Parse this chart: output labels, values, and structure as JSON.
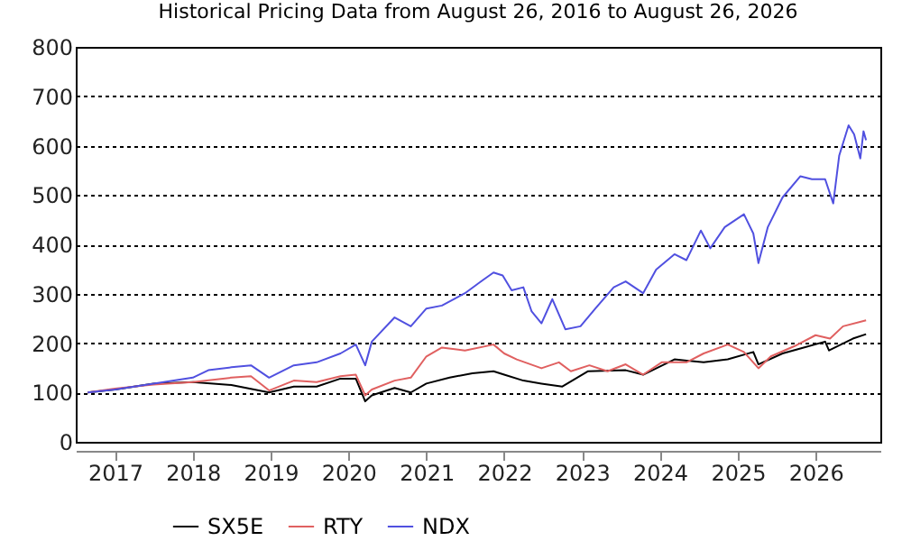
{
  "chart_data": {
    "type": "line",
    "title": "Historical Pricing Data from August 26, 2016 to August 26, 2026",
    "xlim": [
      "2016-07-01",
      "2026-11-01"
    ],
    "xticks": [
      "2017",
      "2018",
      "2019",
      "2020",
      "2021",
      "2022",
      "2023",
      "2024",
      "2025",
      "2026"
    ],
    "ylim": [
      0,
      800
    ],
    "yticks": [
      0,
      100,
      200,
      300,
      400,
      500,
      600,
      700,
      800
    ],
    "grid": "y",
    "legend": "bottom",
    "line_style": "solid",
    "series": [
      {
        "name": "SX5E",
        "color": "#000000",
        "x": [
          "2016-08-26",
          "2017-01-01",
          "2017-07-01",
          "2018-01-01",
          "2018-07-01",
          "2018-12-25",
          "2019-04-20",
          "2019-08-05",
          "2019-11-25",
          "2020-02-05",
          "2020-03-20",
          "2020-04-20",
          "2020-08-05",
          "2020-10-20",
          "2021-01-01",
          "2021-04-20",
          "2021-08-05",
          "2021-11-12",
          "2022-01-01",
          "2022-04-01",
          "2022-06-25",
          "2022-10-01",
          "2023-01-30",
          "2023-07-25",
          "2023-10-15",
          "2024-03-10",
          "2024-07-25",
          "2024-11-15",
          "2025-03-15",
          "2025-04-08",
          "2025-07-30",
          "2025-10-22",
          "2026-02-15",
          "2026-03-05",
          "2026-06-25",
          "2026-08-26"
        ],
        "values": [
          100,
          106,
          118,
          121,
          115,
          100,
          112,
          112,
          128,
          128,
          82,
          94,
          109,
          100,
          118,
          130,
          139,
          143,
          136,
          124,
          118,
          112,
          143,
          145,
          136,
          167,
          161,
          167,
          182,
          157,
          179,
          189,
          203,
          185,
          209,
          218
        ]
      },
      {
        "name": "RTY",
        "color": "#e06060",
        "x": [
          "2016-08-26",
          "2017-01-01",
          "2017-07-01",
          "2018-01-01",
          "2018-07-01",
          "2018-10-01",
          "2018-12-25",
          "2019-04-20",
          "2019-08-05",
          "2019-11-25",
          "2020-02-05",
          "2020-03-20",
          "2020-04-20",
          "2020-08-05",
          "2020-10-20",
          "2021-01-01",
          "2021-03-15",
          "2021-07-01",
          "2021-11-12",
          "2022-01-01",
          "2022-03-01",
          "2022-06-25",
          "2022-09-15",
          "2022-11-10",
          "2023-02-05",
          "2023-05-01",
          "2023-07-25",
          "2023-10-15",
          "2024-01-10",
          "2024-05-05",
          "2024-07-25",
          "2024-11-15",
          "2025-01-30",
          "2025-04-08",
          "2025-06-05",
          "2025-09-25",
          "2026-01-01",
          "2026-03-10",
          "2026-05-10",
          "2026-08-26"
        ],
        "values": [
          100,
          108,
          116,
          121,
          130,
          133,
          104,
          124,
          121,
          133,
          136,
          94,
          106,
          124,
          130,
          173,
          191,
          185,
          197,
          179,
          167,
          149,
          161,
          143,
          155,
          143,
          157,
          136,
          161,
          161,
          179,
          197,
          182,
          149,
          173,
          194,
          216,
          209,
          234,
          246
        ]
      },
      {
        "name": "NDX",
        "color": "#5050e0",
        "x": [
          "2016-08-26",
          "2017-01-01",
          "2017-07-01",
          "2018-01-01",
          "2018-03-15",
          "2018-07-01",
          "2018-10-01",
          "2018-12-25",
          "2019-04-20",
          "2019-08-05",
          "2019-11-25",
          "2020-02-05",
          "2020-03-20",
          "2020-04-20",
          "2020-08-05",
          "2020-10-20",
          "2021-01-01",
          "2021-03-15",
          "2021-07-01",
          "2021-09-15",
          "2021-11-12",
          "2021-12-25",
          "2022-02-05",
          "2022-04-01",
          "2022-05-10",
          "2022-06-25",
          "2022-08-15",
          "2022-10-15",
          "2022-12-25",
          "2023-03-05",
          "2023-05-30",
          "2023-07-25",
          "2023-10-15",
          "2023-12-15",
          "2024-03-10",
          "2024-05-05",
          "2024-07-12",
          "2024-08-25",
          "2024-11-01",
          "2025-01-30",
          "2025-03-15",
          "2025-04-08",
          "2025-05-22",
          "2025-07-30",
          "2025-10-22",
          "2025-12-15",
          "2026-02-15",
          "2026-03-25",
          "2026-04-22",
          "2026-06-05",
          "2026-07-01",
          "2026-07-30",
          "2026-08-14",
          "2026-08-26"
        ],
        "values": [
          100,
          106,
          118,
          130,
          145,
          151,
          155,
          130,
          155,
          161,
          179,
          197,
          155,
          203,
          252,
          234,
          270,
          276,
          301,
          325,
          343,
          337,
          307,
          313,
          264,
          240,
          289,
          228,
          234,
          270,
          313,
          325,
          301,
          349,
          380,
          368,
          428,
          392,
          435,
          461,
          422,
          362,
          435,
          495,
          538,
          532,
          532,
          483,
          580,
          641,
          623,
          574,
          629,
          611
        ]
      }
    ]
  }
}
